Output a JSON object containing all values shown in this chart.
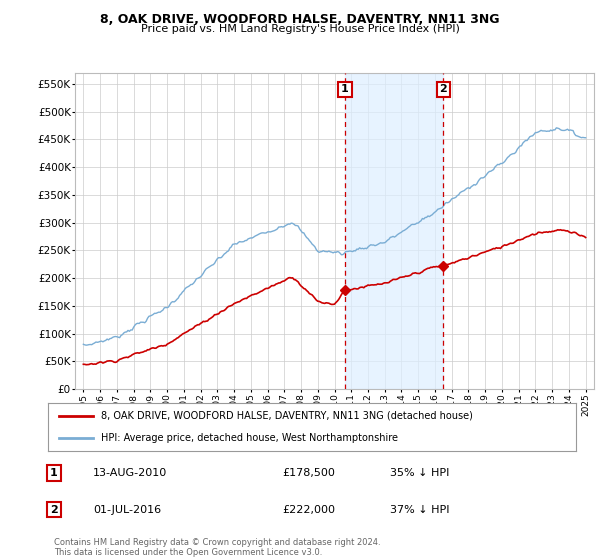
{
  "title": "8, OAK DRIVE, WOODFORD HALSE, DAVENTRY, NN11 3NG",
  "subtitle": "Price paid vs. HM Land Registry's House Price Index (HPI)",
  "legend_line1": "8, OAK DRIVE, WOODFORD HALSE, DAVENTRY, NN11 3NG (detached house)",
  "legend_line2": "HPI: Average price, detached house, West Northamptonshire",
  "footer": "Contains HM Land Registry data © Crown copyright and database right 2024.\nThis data is licensed under the Open Government Licence v3.0.",
  "annotation1_date": "13-AUG-2010",
  "annotation1_price": "£178,500",
  "annotation1_hpi": "35% ↓ HPI",
  "annotation2_date": "01-JUL-2016",
  "annotation2_price": "£222,000",
  "annotation2_hpi": "37% ↓ HPI",
  "sale1_x": 2010.62,
  "sale1_y": 178500,
  "sale2_x": 2016.5,
  "sale2_y": 222000,
  "red_line_color": "#cc0000",
  "blue_line_color": "#7aadd4",
  "vline_color": "#cc0000",
  "shade_color": "#ddeeff",
  "grid_color": "#cccccc",
  "background_color": "#ffffff",
  "ylim": [
    0,
    570000
  ],
  "xlim": [
    1994.5,
    2025.5
  ],
  "yticks": [
    0,
    50000,
    100000,
    150000,
    200000,
    250000,
    300000,
    350000,
    400000,
    450000,
    500000,
    550000
  ],
  "xticks": [
    1995,
    1996,
    1997,
    1998,
    1999,
    2000,
    2001,
    2002,
    2003,
    2004,
    2005,
    2006,
    2007,
    2008,
    2009,
    2010,
    2011,
    2012,
    2013,
    2014,
    2015,
    2016,
    2017,
    2018,
    2019,
    2020,
    2021,
    2022,
    2023,
    2024,
    2025
  ]
}
